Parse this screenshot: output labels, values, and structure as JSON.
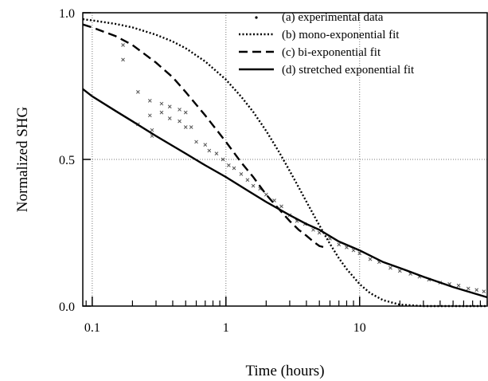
{
  "chart_data": {
    "type": "line",
    "xlabel": "Time (hours)",
    "ylabel": "Normalized SHG",
    "x_scale": "log",
    "xlim": [
      0.085,
      90
    ],
    "ylim": [
      0,
      1
    ],
    "x_ticks": [
      {
        "value": 0.1,
        "label": "0.1"
      },
      {
        "value": 1,
        "label": "1"
      },
      {
        "value": 10,
        "label": "10"
      }
    ],
    "y_ticks": [
      {
        "value": 0,
        "label": "0.0"
      },
      {
        "value": 0.5,
        "label": "0.5"
      },
      {
        "value": 1,
        "label": "1.0"
      }
    ],
    "grid": true,
    "legend_position": "top-right",
    "colors": {
      "data": "#555555",
      "line": "#000000"
    },
    "series": [
      {
        "name": "(a) experimental data",
        "style": "points",
        "x": [
          0.17,
          0.17,
          0.22,
          0.22,
          0.27,
          0.27,
          0.28,
          0.28,
          0.33,
          0.33,
          0.38,
          0.38,
          0.45,
          0.45,
          0.5,
          0.5,
          0.55,
          0.6,
          0.7,
          0.75,
          0.85,
          0.95,
          1.05,
          1.15,
          1.3,
          1.45,
          1.6,
          1.8,
          2.0,
          2.3,
          2.6,
          3.0,
          3.4,
          3.9,
          4.5,
          5.0,
          6.0,
          7.0,
          8.0,
          9.0,
          10.0,
          12.0,
          14.0,
          17.0,
          20.0,
          24.0,
          28.0,
          33.0,
          40.0,
          47.0,
          55.0,
          65.0,
          75.0,
          85.0
        ],
        "y": [
          0.89,
          0.84,
          0.73,
          0.62,
          0.65,
          0.7,
          0.6,
          0.58,
          0.69,
          0.66,
          0.68,
          0.64,
          0.67,
          0.63,
          0.66,
          0.61,
          0.61,
          0.56,
          0.55,
          0.53,
          0.52,
          0.5,
          0.48,
          0.47,
          0.45,
          0.43,
          0.41,
          0.4,
          0.38,
          0.36,
          0.34,
          0.31,
          0.29,
          0.28,
          0.26,
          0.25,
          0.23,
          0.21,
          0.2,
          0.19,
          0.18,
          0.16,
          0.15,
          0.13,
          0.12,
          0.11,
          0.1,
          0.09,
          0.08,
          0.075,
          0.07,
          0.06,
          0.055,
          0.05
        ]
      },
      {
        "name": "(b) mono-exponential fit",
        "style": "dotted",
        "x": [
          0.085,
          0.1,
          0.15,
          0.2,
          0.3,
          0.4,
          0.5,
          0.7,
          1.0,
          1.3,
          1.6,
          2.0,
          2.5,
          3.0,
          3.5,
          4.0,
          5.0,
          6.0,
          7.0,
          8.0,
          10.0,
          12.0,
          15.0,
          20.0,
          30.0,
          90.0
        ],
        "y": [
          0.978,
          0.974,
          0.962,
          0.95,
          0.925,
          0.902,
          0.879,
          0.834,
          0.772,
          0.714,
          0.662,
          0.597,
          0.525,
          0.461,
          0.405,
          0.356,
          0.275,
          0.212,
          0.163,
          0.126,
          0.075,
          0.044,
          0.02,
          0.005,
          0.0,
          0.0
        ]
      },
      {
        "name": "(c) bi-exponential fit",
        "style": "dashed",
        "x": [
          0.085,
          0.1,
          0.15,
          0.2,
          0.3,
          0.4,
          0.5,
          0.7,
          1.0,
          1.3,
          1.6,
          2.0,
          2.5,
          3.0,
          3.5,
          4.0,
          4.5,
          5.0,
          5.5
        ],
        "y": [
          0.96,
          0.95,
          0.92,
          0.89,
          0.83,
          0.78,
          0.73,
          0.65,
          0.56,
          0.49,
          0.44,
          0.38,
          0.33,
          0.29,
          0.26,
          0.24,
          0.22,
          0.205,
          0.2
        ]
      },
      {
        "name": "(d) stretched exponential fit",
        "style": "solid",
        "x": [
          0.085,
          0.1,
          0.15,
          0.2,
          0.3,
          0.5,
          0.7,
          1.0,
          1.5,
          2.0,
          3.0,
          4.0,
          5.0,
          7.0,
          10.0,
          15.0,
          20.0,
          30.0,
          50.0,
          90.0
        ],
        "y": [
          0.74,
          0.715,
          0.665,
          0.63,
          0.58,
          0.52,
          0.48,
          0.44,
          0.39,
          0.355,
          0.31,
          0.28,
          0.26,
          0.22,
          0.19,
          0.15,
          0.13,
          0.1,
          0.065,
          0.03
        ]
      }
    ]
  }
}
